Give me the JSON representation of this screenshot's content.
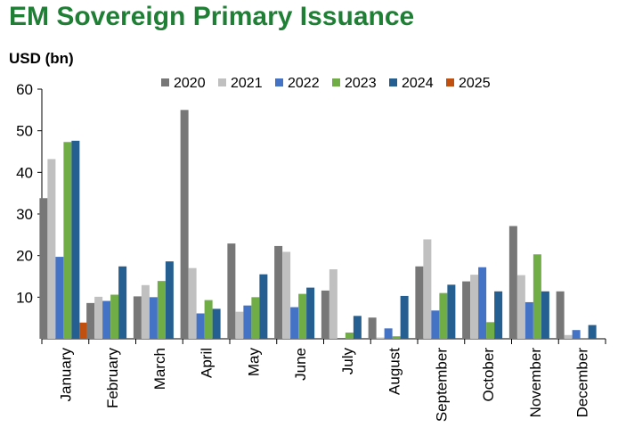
{
  "title": "EM Sovereign Primary Issuance",
  "unit_label": "USD (bn)",
  "chart_data": {
    "type": "bar",
    "ylim": [
      0,
      60
    ],
    "yticks": [
      10,
      20,
      30,
      40,
      50,
      60
    ],
    "grid": false,
    "legend_position": "top",
    "categories": [
      "January",
      "February",
      "March",
      "April",
      "May",
      "June",
      "July",
      "August",
      "September",
      "October",
      "November",
      "December"
    ],
    "series": [
      {
        "name": "2020",
        "color": "#777777",
        "values": [
          33.8,
          8.6,
          10.2,
          55.0,
          22.9,
          22.3,
          11.6,
          5.1,
          17.4,
          13.8,
          27.1,
          11.4
        ]
      },
      {
        "name": "2021",
        "color": "#c0c0c0",
        "values": [
          43.2,
          10.1,
          12.9,
          17.0,
          6.5,
          20.9,
          16.7,
          0.3,
          23.9,
          15.4,
          15.3,
          0.9
        ]
      },
      {
        "name": "2022",
        "color": "#4472c4",
        "values": [
          19.7,
          9.1,
          10.0,
          6.1,
          8.0,
          7.6,
          0.2,
          2.5,
          6.8,
          17.2,
          8.8,
          2.1
        ]
      },
      {
        "name": "2023",
        "color": "#70ad47",
        "values": [
          47.3,
          10.6,
          13.9,
          9.3,
          10.0,
          10.8,
          1.5,
          0.6,
          11.0,
          4.0,
          20.3,
          0.2
        ]
      },
      {
        "name": "2024",
        "color": "#255e91",
        "values": [
          47.6,
          17.4,
          18.6,
          7.2,
          15.5,
          12.3,
          5.5,
          10.3,
          13.0,
          11.4,
          11.4,
          3.3
        ]
      },
      {
        "name": "2025",
        "color": "#c0500f",
        "values": [
          3.9,
          0,
          0,
          0,
          0,
          0,
          0,
          0,
          0,
          0,
          0,
          0
        ]
      }
    ]
  }
}
